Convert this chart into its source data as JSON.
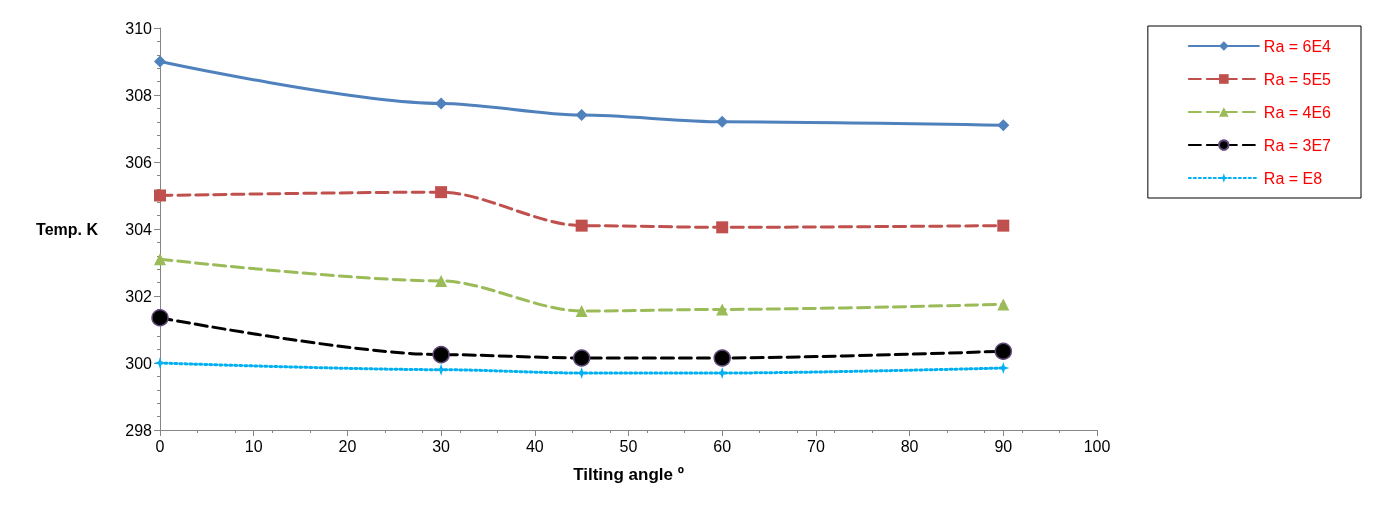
{
  "chart_data": {
    "type": "line",
    "xlabel": "Tilting angle º",
    "ylabel": "Temp. K",
    "x": [
      0,
      30,
      45,
      60,
      90
    ],
    "xlim": [
      0,
      100
    ],
    "xticks": [
      0,
      10,
      20,
      30,
      40,
      50,
      60,
      70,
      80,
      90,
      100
    ],
    "ylim": [
      298,
      310
    ],
    "yticks": [
      298,
      300,
      302,
      304,
      306,
      308,
      310
    ],
    "grid": false,
    "legend": "right",
    "series": [
      {
        "name": "Ra = 6E4",
        "color": "#4f81bd",
        "marker": "diamond",
        "line_style": "solid",
        "values": [
          309.0,
          307.75,
          307.4,
          307.2,
          307.1
        ]
      },
      {
        "name": "Ra = 5E5",
        "color": "#c0504d",
        "marker": "square",
        "line_style": "dashed",
        "values": [
          305.0,
          305.1,
          304.1,
          304.05,
          304.1
        ]
      },
      {
        "name": "Ra = 4E6",
        "color": "#9bbb59",
        "marker": "triangle",
        "line_style": "dashed",
        "values": [
          303.1,
          302.45,
          301.55,
          301.6,
          301.75
        ]
      },
      {
        "name": "Ra = 3E7",
        "color": "#000000",
        "marker": "circle",
        "line_style": "dashed",
        "values": [
          301.35,
          300.25,
          300.15,
          300.15,
          300.35
        ]
      },
      {
        "name": "Ra = E8",
        "color": "#00b0f0",
        "marker": "cross",
        "line_style": "dotted",
        "values": [
          300.0,
          299.8,
          299.7,
          299.7,
          299.85
        ]
      }
    ]
  }
}
